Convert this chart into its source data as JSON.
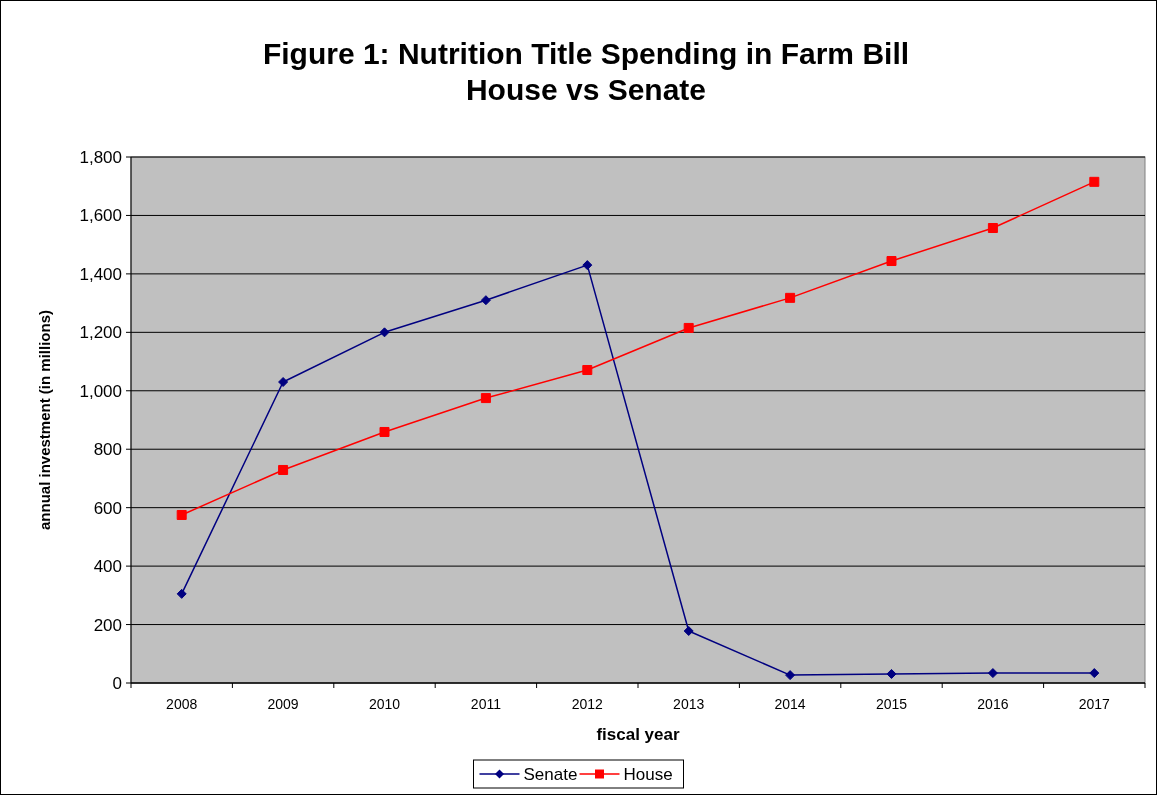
{
  "chart_data": {
    "type": "line",
    "title": "Figure 1: Nutrition Title Spending in Farm Bill\nHouse vs Senate",
    "xlabel": "fiscal year",
    "ylabel": "annual investment (in millions)",
    "categories": [
      "2008",
      "2009",
      "2010",
      "2011",
      "2012",
      "2013",
      "2014",
      "2015",
      "2016",
      "2017"
    ],
    "series": [
      {
        "name": "Senate",
        "color": "#000080",
        "marker": "diamond",
        "values": [
          305,
          1030,
          1200,
          1310,
          1430,
          178,
          27,
          31,
          34,
          34
        ]
      },
      {
        "name": "House",
        "color": "#ff0000",
        "marker": "square",
        "values": [
          575,
          729,
          859,
          975,
          1071,
          1215,
          1318,
          1444,
          1557,
          1715
        ]
      }
    ],
    "ylim": [
      0,
      1800
    ],
    "yticks": [
      {
        "value": 0,
        "label": "0"
      },
      {
        "value": 200,
        "label": "200"
      },
      {
        "value": 400,
        "label": "400"
      },
      {
        "value": 600,
        "label": "600"
      },
      {
        "value": 800,
        "label": "800"
      },
      {
        "value": 1000,
        "label": "1,000"
      },
      {
        "value": 1200,
        "label": "1,200"
      },
      {
        "value": 1400,
        "label": "1,400"
      },
      {
        "value": 1600,
        "label": "1,600"
      },
      {
        "value": 1800,
        "label": "1,800"
      }
    ],
    "grid": "y",
    "legend": "bottom",
    "line_style": "solid"
  }
}
